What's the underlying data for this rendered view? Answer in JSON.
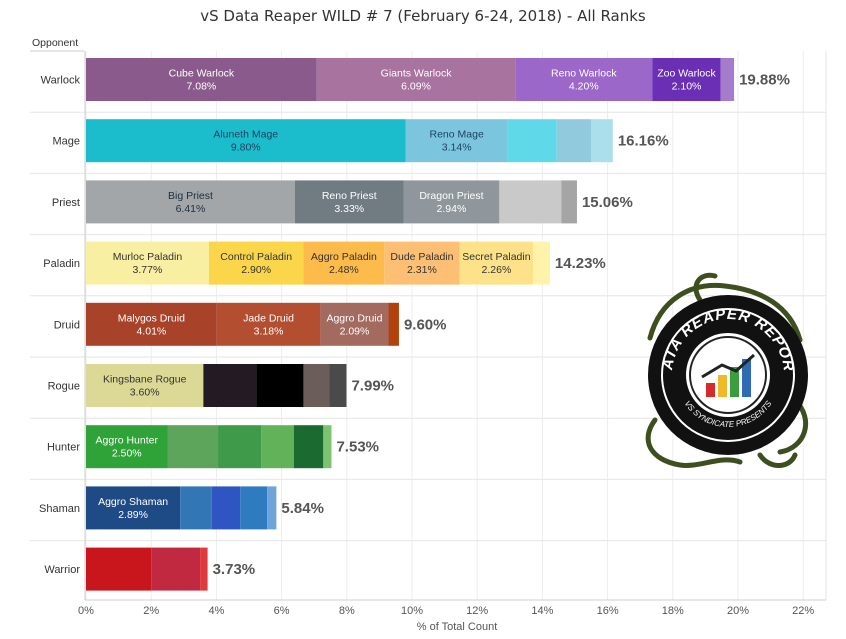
{
  "chart_data": {
    "type": "bar",
    "orientation": "horizontal",
    "stacked": true,
    "title": "vS Data Reaper WILD # 7 (February 6-24, 2018) - All Ranks",
    "row_header": "Opponent",
    "xlabel": "% of Total Count",
    "xlim": [
      0,
      22
    ],
    "x_ticks": [
      "0%",
      "2%",
      "4%",
      "6%",
      "8%",
      "10%",
      "12%",
      "14%",
      "16%",
      "18%",
      "20%",
      "22%"
    ],
    "grid": true,
    "categories": [
      "Warlock",
      "Mage",
      "Priest",
      "Paladin",
      "Druid",
      "Rogue",
      "Hunter",
      "Shaman",
      "Warrior"
    ],
    "totals": [
      "19.88%",
      "16.16%",
      "15.06%",
      "14.23%",
      "9.60%",
      "7.99%",
      "7.53%",
      "5.84%",
      "3.73%"
    ],
    "rows": [
      {
        "category": "Warlock",
        "total": 19.88,
        "segments": [
          {
            "name": "Cube Warlock",
            "value": 7.08,
            "pct": "7.08%",
            "color": "#8b5a8c",
            "text_color": "#ffffff"
          },
          {
            "name": "Giants Warlock",
            "value": 6.09,
            "pct": "6.09%",
            "color": "#a9739f",
            "text_color": "#ffffff"
          },
          {
            "name": "Reno Warlock",
            "value": 4.2,
            "pct": "4.20%",
            "color": "#9b67c9",
            "text_color": "#ffffff"
          },
          {
            "name": "Zoo Warlock",
            "value": 2.1,
            "pct": "2.10%",
            "color": "#6a2fb4",
            "text_color": "#ffffff"
          },
          {
            "value": 0.41,
            "color": "#a47ccc"
          }
        ]
      },
      {
        "category": "Mage",
        "total": 16.16,
        "segments": [
          {
            "name": "Aluneth Mage",
            "value": 9.8,
            "pct": "9.80%",
            "color": "#1bbccb",
            "text_color": "#1f3f5f"
          },
          {
            "name": "Reno Mage",
            "value": 3.14,
            "pct": "3.14%",
            "color": "#7bc6de",
            "text_color": "#1f3f5f"
          },
          {
            "value": 1.5,
            "color": "#5fd9e8"
          },
          {
            "value": 1.05,
            "color": "#91c9dd"
          },
          {
            "value": 0.67,
            "color": "#aadfeb"
          }
        ]
      },
      {
        "category": "Priest",
        "total": 15.06,
        "segments": [
          {
            "name": "Big Priest",
            "value": 6.41,
            "pct": "6.41%",
            "color": "#a2a6a8",
            "text_color": "#1f2f3f"
          },
          {
            "name": "Reno Priest",
            "value": 3.33,
            "pct": "3.33%",
            "color": "#717b82",
            "text_color": "#ffffff"
          },
          {
            "name": "Dragon Priest",
            "value": 2.94,
            "pct": "2.94%",
            "color": "#8f979c",
            "text_color": "#ffffff"
          },
          {
            "value": 1.9,
            "color": "#c9c9c9"
          },
          {
            "value": 0.48,
            "color": "#a5a5a5"
          }
        ]
      },
      {
        "category": "Paladin",
        "total": 14.23,
        "segments": [
          {
            "name": "Murloc Paladin",
            "value": 3.77,
            "pct": "3.77%",
            "color": "#f9efa3",
            "text_color": "#333333"
          },
          {
            "name": "Control Paladin",
            "value": 2.9,
            "pct": "2.90%",
            "color": "#fcd64a",
            "text_color": "#333333"
          },
          {
            "name": "Aggro Paladin",
            "value": 2.48,
            "pct": "2.48%",
            "color": "#fdbb4c",
            "text_color": "#333333"
          },
          {
            "name": "Dude Paladin",
            "value": 2.31,
            "pct": "2.31%",
            "color": "#fcbf73",
            "text_color": "#333333"
          },
          {
            "name": "Secret Paladin",
            "value": 2.26,
            "pct": "2.26%",
            "color": "#fde28a",
            "text_color": "#333333"
          },
          {
            "value": 0.51,
            "color": "#fef3a8"
          }
        ]
      },
      {
        "category": "Druid",
        "total": 9.6,
        "segments": [
          {
            "name": "Malygos Druid",
            "value": 4.01,
            "pct": "4.01%",
            "color": "#a8432a",
            "text_color": "#ffffff"
          },
          {
            "name": "Jade Druid",
            "value": 3.18,
            "pct": "3.18%",
            "color": "#b34e31",
            "text_color": "#ffffff"
          },
          {
            "name": "Aggro Druid",
            "value": 2.09,
            "pct": "2.09%",
            "color": "#a36a5f",
            "text_color": "#ffffff"
          },
          {
            "value": 0.32,
            "color": "#b2420d"
          }
        ]
      },
      {
        "category": "Rogue",
        "total": 7.99,
        "segments": [
          {
            "name": "Kingsbane Rogue",
            "value": 3.6,
            "pct": "3.60%",
            "color": "#dcd996",
            "text_color": "#333333"
          },
          {
            "value": 1.62,
            "color": "#231a24"
          },
          {
            "value": 1.45,
            "color": "#000000"
          },
          {
            "value": 0.8,
            "color": "#6a5d5a"
          },
          {
            "value": 0.52,
            "color": "#4a4a4a"
          }
        ]
      },
      {
        "category": "Hunter",
        "total": 7.53,
        "segments": [
          {
            "name": "Aggro Hunter",
            "value": 2.5,
            "pct": "2.50%",
            "color": "#2fa337",
            "text_color": "#ffffff"
          },
          {
            "value": 1.55,
            "color": "#5ea55c"
          },
          {
            "value": 1.32,
            "color": "#3f9a4a"
          },
          {
            "value": 1.01,
            "color": "#62b25a"
          },
          {
            "value": 0.9,
            "color": "#1b6b31"
          },
          {
            "value": 0.25,
            "color": "#7cc36f"
          }
        ]
      },
      {
        "category": "Shaman",
        "total": 5.84,
        "segments": [
          {
            "name": "Aggro Shaman",
            "value": 2.89,
            "pct": "2.89%",
            "color": "#1e4a85",
            "text_color": "#ffffff"
          },
          {
            "value": 0.97,
            "color": "#3376b6"
          },
          {
            "value": 0.87,
            "color": "#2f55c3"
          },
          {
            "value": 0.83,
            "color": "#2f7bbf"
          },
          {
            "value": 0.28,
            "color": "#6fa4d8"
          }
        ]
      },
      {
        "category": "Warrior",
        "total": 3.73,
        "segments": [
          {
            "value": 2.0,
            "color": "#c8161c"
          },
          {
            "value": 1.5,
            "color": "#c0293f"
          },
          {
            "value": 0.23,
            "color": "#e03a3e"
          }
        ]
      }
    ]
  },
  "logo": {
    "lines": [
      "DATA REAPER REPORT",
      "VS SYNDICATE PRESENTS"
    ]
  }
}
